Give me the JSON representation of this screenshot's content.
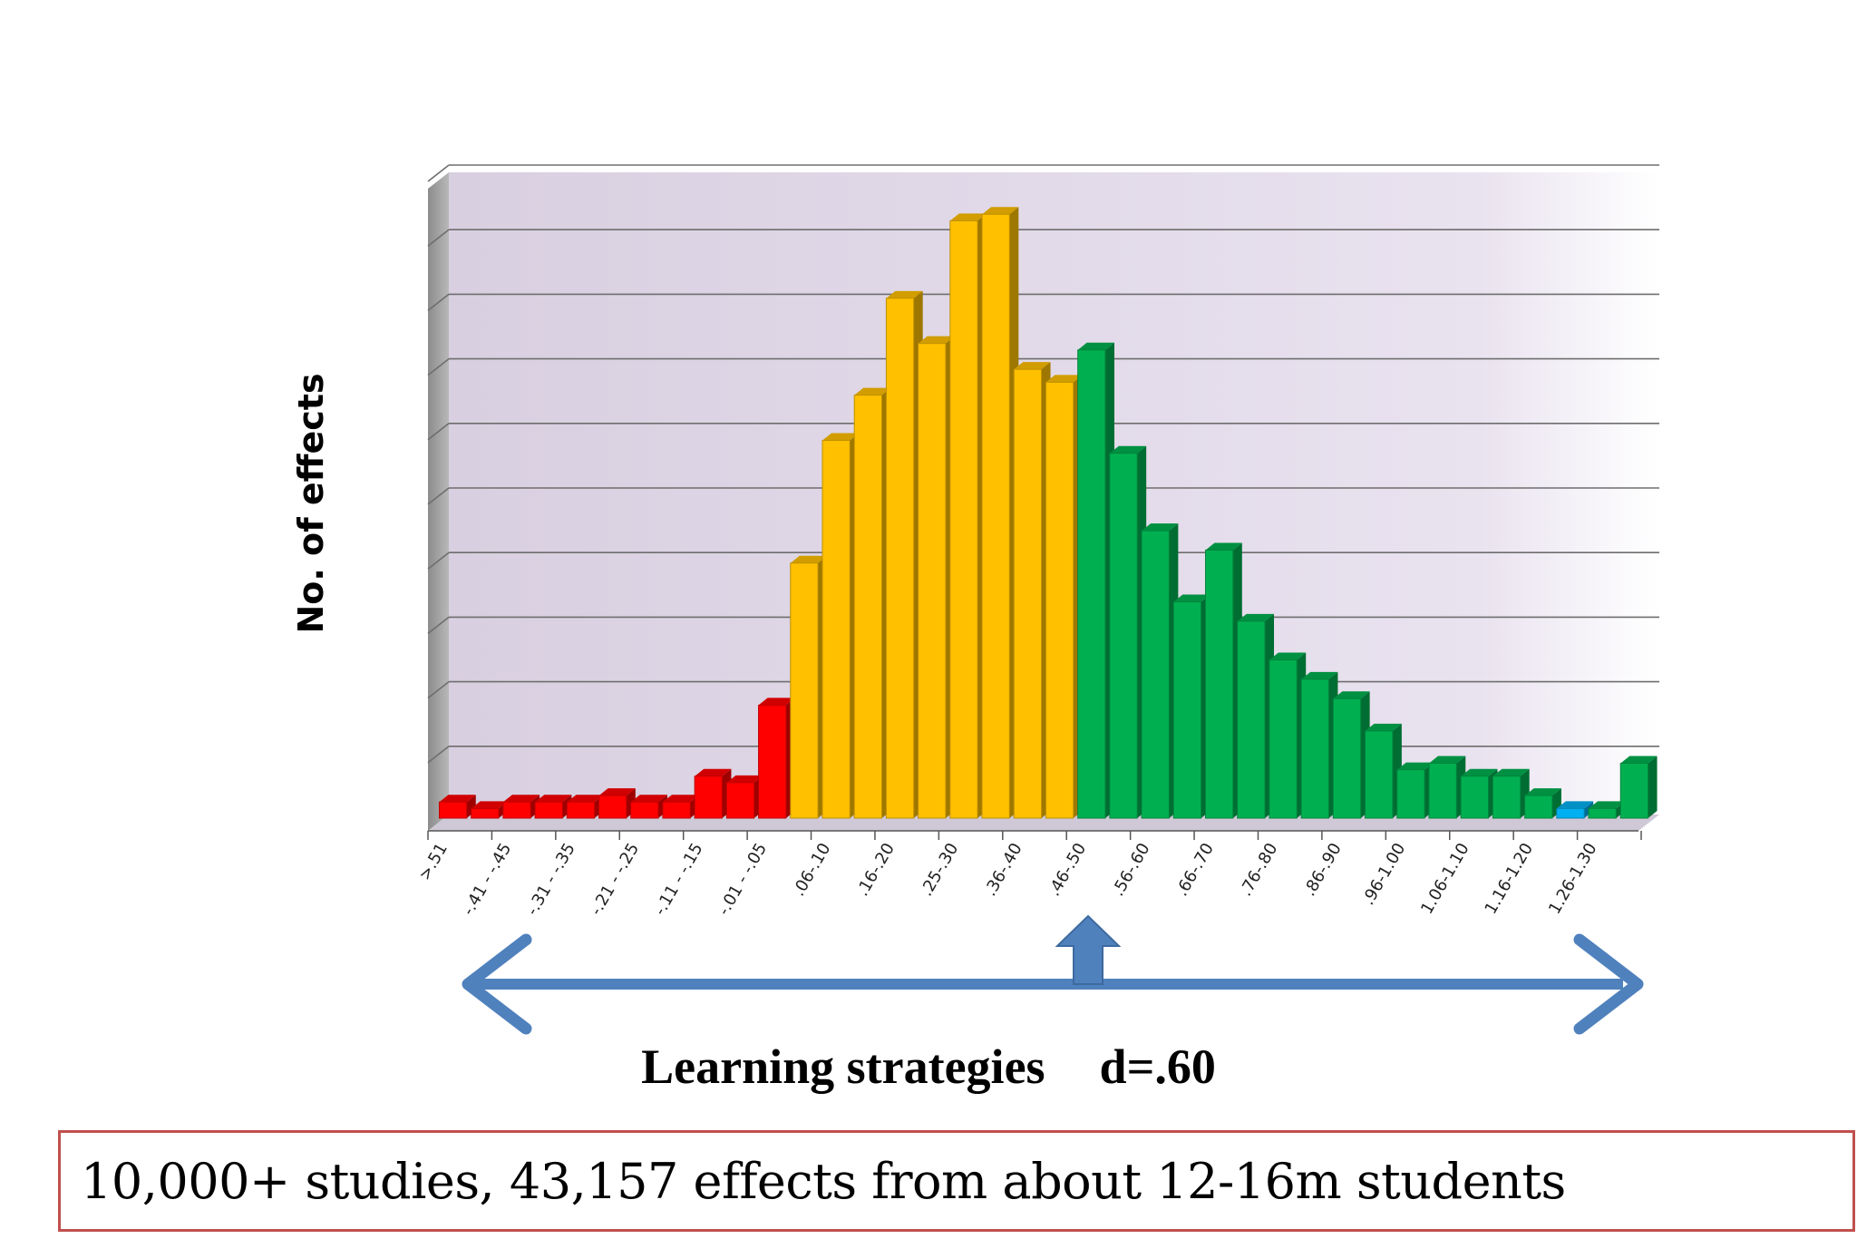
{
  "chart_data": {
    "type": "bar",
    "title": "",
    "xlabel": "",
    "ylabel": "No. of effects",
    "ylim": [
      0,
      10
    ],
    "grid": true,
    "gridlines": 10,
    "tick_labels_shown": [
      ">.51",
      "-.41 - -.45",
      "-.31 - -.35",
      "-.21 - -.25",
      "-.11 - -.15",
      "-.01 - -.05",
      ".06-.10",
      ".16-.20",
      ".25-.30",
      ".36-.40",
      ".46-.50",
      ".56-.60",
      ".66-.70",
      ".76-.80",
      ".86-.90",
      ".96-1.00",
      "1.06-1.10",
      "1.16-1.20",
      "1.26-1.30"
    ],
    "values": [
      0.25,
      0.15,
      0.25,
      0.25,
      0.25,
      0.35,
      0.25,
      0.25,
      0.65,
      0.55,
      1.75,
      3.95,
      5.85,
      6.55,
      8.05,
      7.35,
      9.25,
      9.35,
      6.95,
      6.75,
      7.25,
      5.65,
      4.45,
      3.35,
      4.15,
      3.05,
      2.45,
      2.15,
      1.85,
      1.35,
      0.75,
      0.85,
      0.65,
      0.65,
      0.35,
      0.15,
      0.15,
      0.85
    ],
    "colors": [
      "#ff0000",
      "#ff0000",
      "#ff0000",
      "#ff0000",
      "#ff0000",
      "#ff0000",
      "#ff0000",
      "#ff0000",
      "#ff0000",
      "#ff0000",
      "#ff0000",
      "#ffc000",
      "#ffc000",
      "#ffc000",
      "#ffc000",
      "#ffc000",
      "#ffc000",
      "#ffc000",
      "#ffc000",
      "#ffc000",
      "#00b050",
      "#00b050",
      "#00b050",
      "#00b050",
      "#00b050",
      "#00b050",
      "#00b050",
      "#00b050",
      "#00b050",
      "#00b050",
      "#00b050",
      "#00b050",
      "#00b050",
      "#00b050",
      "#00b050",
      "#00b0f0",
      "#00b050",
      "#00b050"
    ],
    "plot_background": "#e8e0ee",
    "arrow_color": "#4f81bd"
  },
  "caption": {
    "label": "Learning strategies",
    "effect": "d=.60"
  },
  "info": {
    "text": "10,000+ studies, 43,157 effects from about 12-16m students"
  }
}
